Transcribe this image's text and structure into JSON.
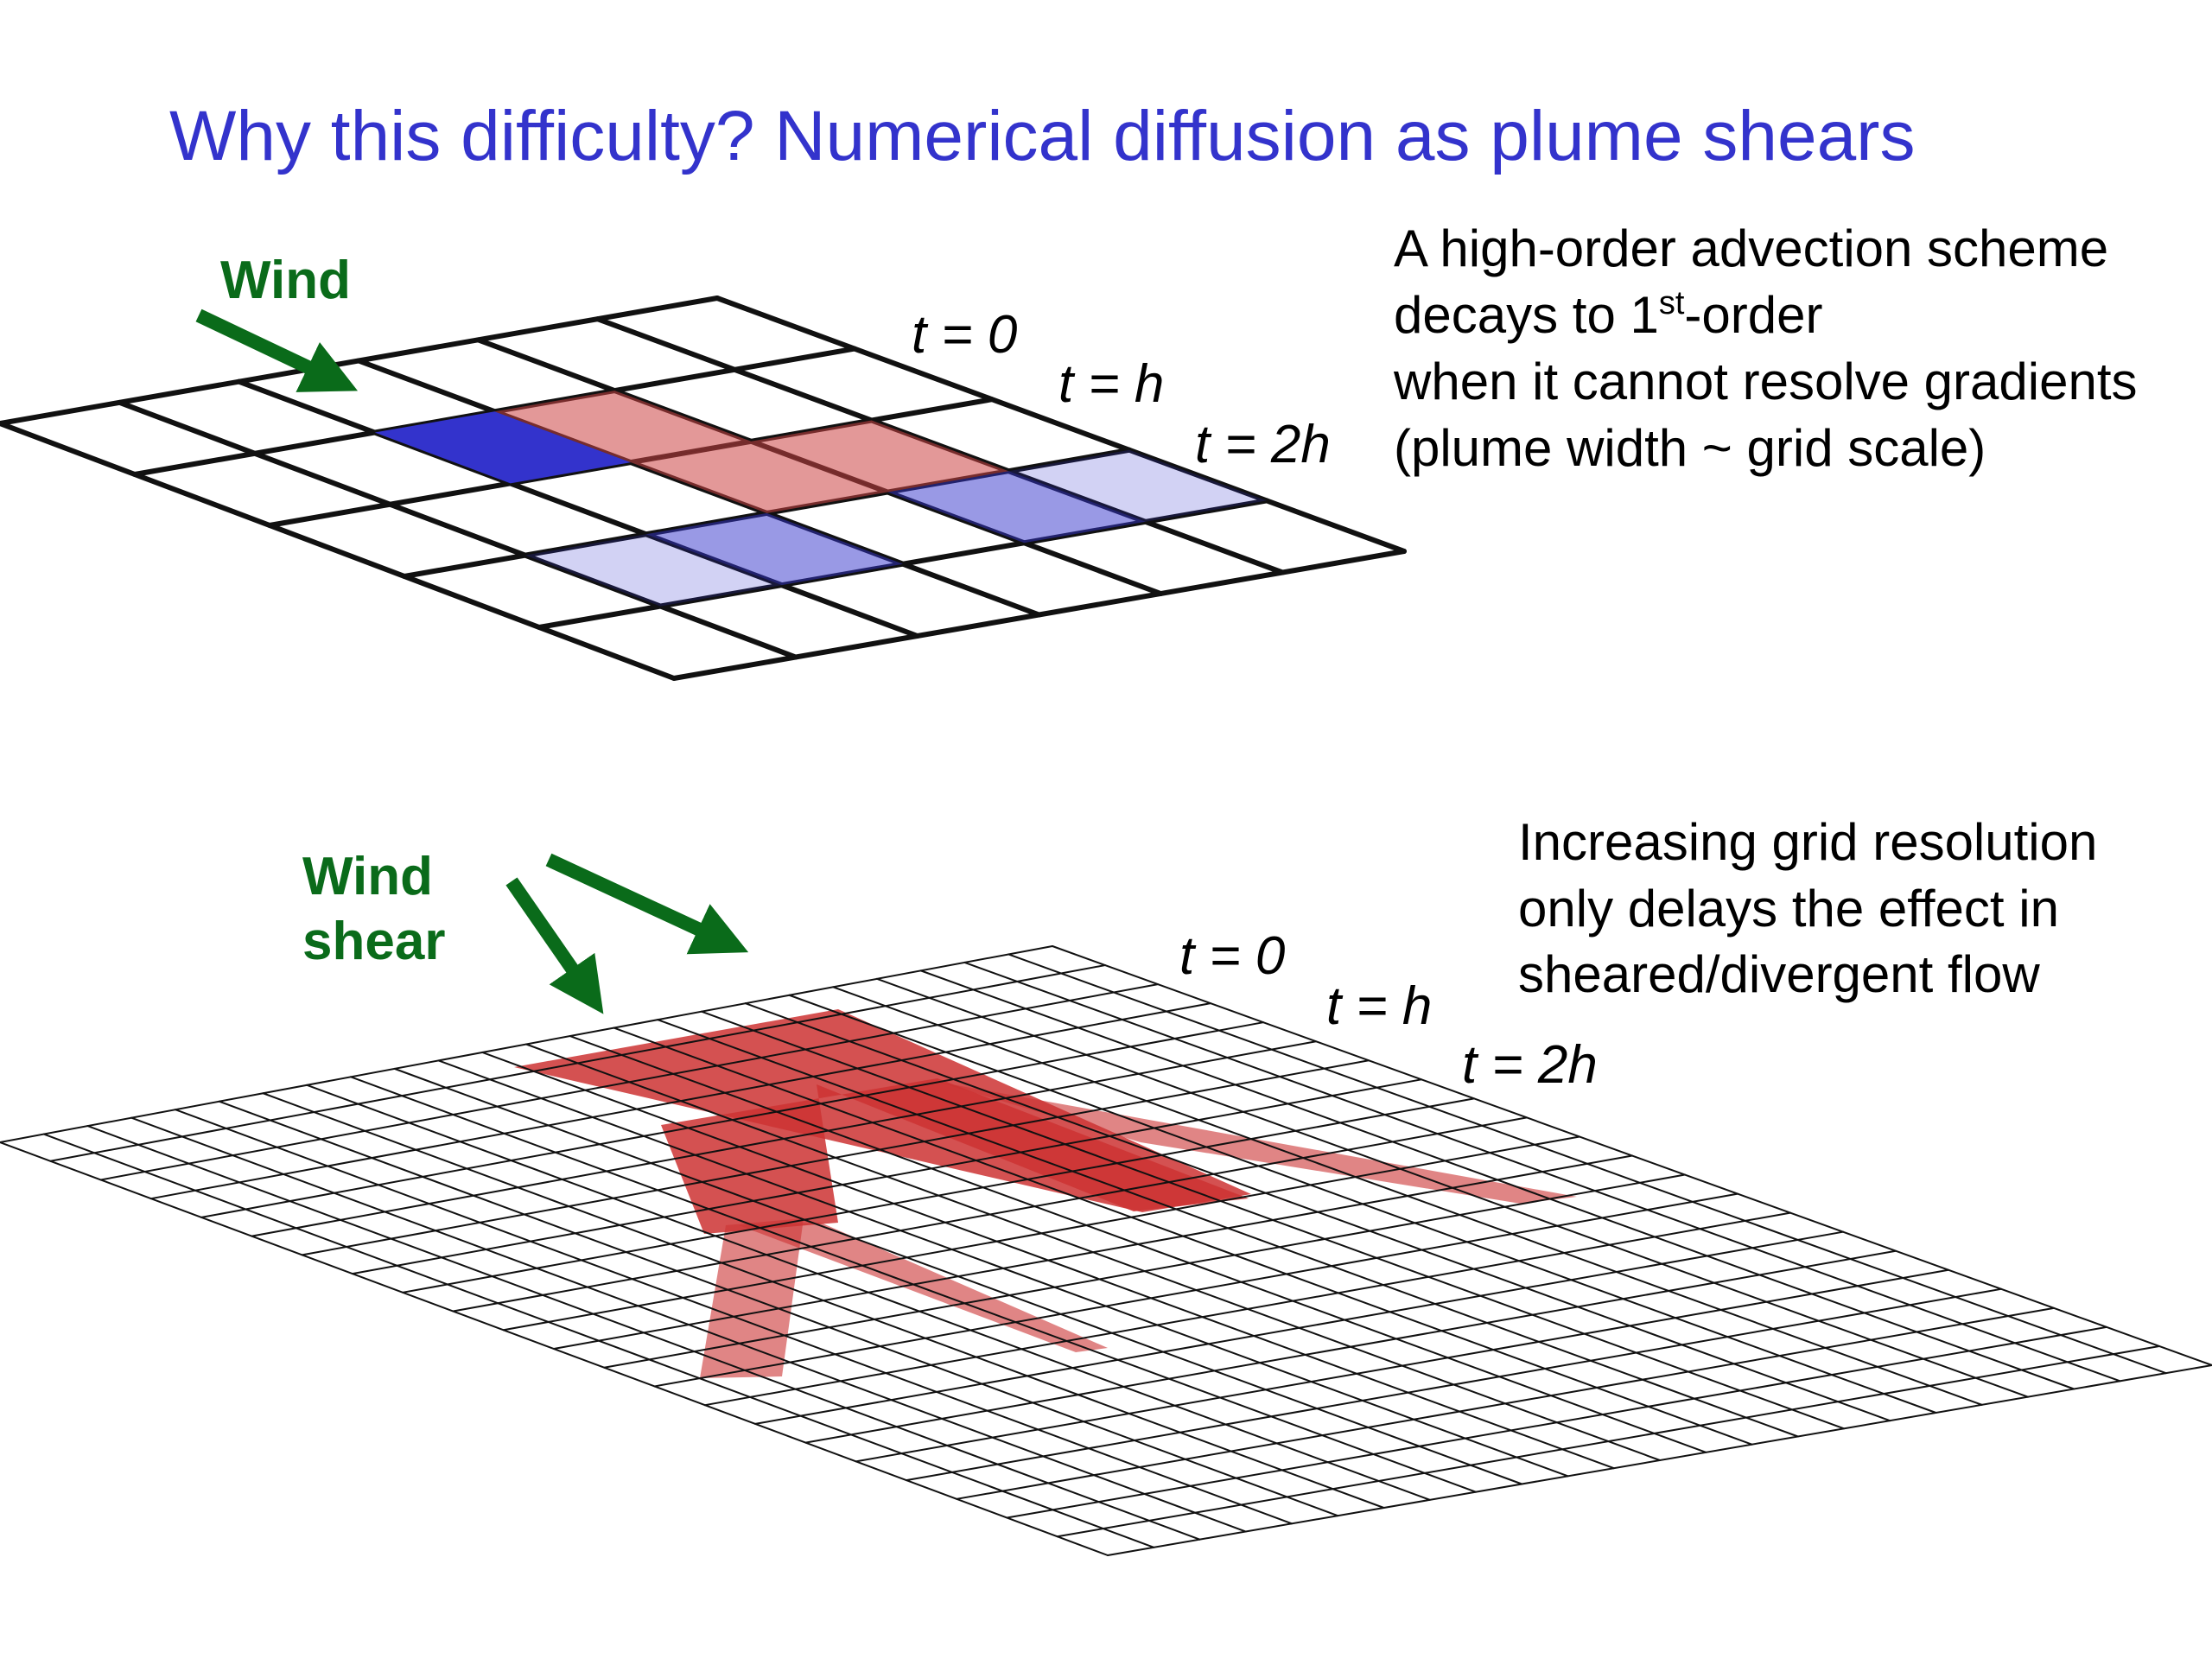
{
  "slide": {
    "title": "Why this difficulty? Numerical diffusion as plume shears"
  },
  "top_panel": {
    "wind_label": "Wind",
    "time_labels": [
      "t = 0",
      "t = h",
      "t = 2h"
    ],
    "text_line1": "A high-order advection scheme",
    "text_line2_pre": "decays to 1",
    "text_line2_sup": "st",
    "text_line2_post": "-order",
    "text_line3": "when it cannot resolve gradients",
    "text_line4": "(plume width ~ grid scale)"
  },
  "bottom_panel": {
    "wind_label_line1": "Wind",
    "wind_label_line2": "shear",
    "time_labels": [
      "t = 0",
      "t = h",
      "t = 2h"
    ],
    "text_line1": "Increasing grid resolution",
    "text_line2": "only delays the effect  in",
    "text_line3": "sheared/divergent flow"
  },
  "colors": {
    "title": "#3333cc",
    "wind": "#0a6b1a",
    "plume_blue": "#3333cc",
    "plume_red": "#cc4444"
  }
}
